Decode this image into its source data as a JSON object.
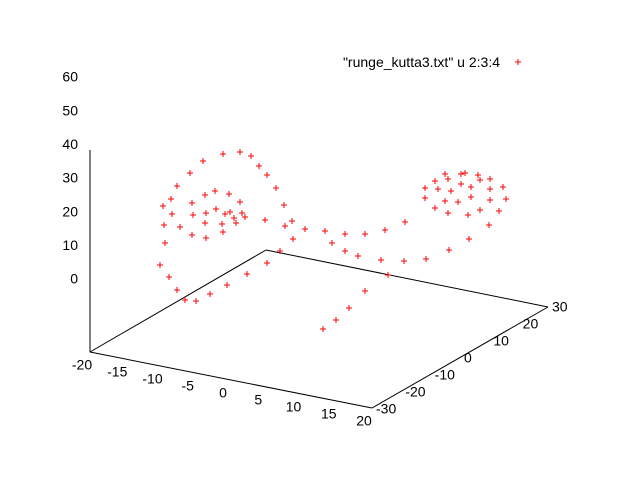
{
  "chart_data": {
    "type": "scatter",
    "subtype": "3d-splot",
    "title": "",
    "xlabel": "",
    "ylabel": "",
    "zlabel": "",
    "legend": {
      "text": "\"runge_kutta3.txt\" u 2:3:4",
      "position": "top-right",
      "marker": "+"
    },
    "color": "#ff0000",
    "axes": {
      "x": {
        "range": [
          -20,
          20
        ],
        "ticks": [
          -20,
          -15,
          -10,
          -5,
          0,
          5,
          10,
          15,
          20
        ]
      },
      "y": {
        "range": [
          -30,
          30
        ],
        "ticks": [
          -30,
          -20,
          -10,
          0,
          10,
          20,
          30
        ]
      },
      "z": {
        "range": [
          0,
          60
        ],
        "ticks": [
          0,
          10,
          20,
          30,
          40,
          50,
          60
        ]
      }
    },
    "series": [
      {
        "name": "\"runge_kutta3.txt\" u 2:3:4",
        "marker": "+",
        "points": [
          [
            -18,
            -10,
            34
          ],
          [
            -17,
            -12,
            30
          ],
          [
            -16,
            -14,
            26
          ],
          [
            -15,
            -18,
            22
          ],
          [
            -13,
            -20,
            20
          ],
          [
            -11,
            -22,
            18
          ],
          [
            -9,
            -24,
            17
          ],
          [
            -7,
            -25,
            18
          ],
          [
            -5,
            -25,
            21
          ],
          [
            -3,
            -24,
            24
          ],
          [
            -1,
            -22,
            27
          ],
          [
            1,
            -20,
            30
          ],
          [
            2,
            -18,
            33
          ],
          [
            3,
            -16,
            36
          ],
          [
            2,
            -14,
            40
          ],
          [
            0,
            -12,
            43
          ],
          [
            -2,
            -10,
            46
          ],
          [
            -4,
            -8,
            48
          ],
          [
            -6,
            -6,
            49
          ],
          [
            -8,
            -4,
            50
          ],
          [
            -10,
            -3,
            50
          ],
          [
            -12,
            -4,
            49
          ],
          [
            -14,
            -6,
            47
          ],
          [
            -15,
            -8,
            44
          ],
          [
            -16,
            -10,
            41
          ],
          [
            -16,
            -12,
            38
          ],
          [
            -15,
            -14,
            35
          ],
          [
            -13,
            -16,
            33
          ],
          [
            -11,
            -17,
            32
          ],
          [
            -9,
            -17,
            32
          ],
          [
            -7,
            -16,
            34
          ],
          [
            -6,
            -14,
            36
          ],
          [
            -6,
            -12,
            38
          ],
          [
            -7,
            -10,
            40
          ],
          [
            -9,
            -9,
            41
          ],
          [
            -11,
            -9,
            41
          ],
          [
            -12,
            -10,
            40
          ],
          [
            -13,
            -12,
            38
          ],
          [
            -12,
            -14,
            36
          ],
          [
            -10,
            -15,
            35
          ],
          [
            -8,
            -14,
            35
          ],
          [
            -7,
            -12,
            36
          ],
          [
            -8,
            -11,
            37
          ],
          [
            -10,
            -11,
            37
          ],
          [
            -11,
            -12,
            36
          ],
          [
            1,
            2,
            25
          ],
          [
            2,
            4,
            22
          ],
          [
            3,
            6,
            20
          ],
          [
            5,
            9,
            18
          ],
          [
            7,
            12,
            17
          ],
          [
            9,
            15,
            17
          ],
          [
            11,
            18,
            19
          ],
          [
            13,
            20,
            22
          ],
          [
            15,
            22,
            26
          ],
          [
            16,
            23,
            30
          ],
          [
            17,
            23,
            34
          ],
          [
            17,
            22,
            38
          ],
          [
            16,
            20,
            41
          ],
          [
            15,
            18,
            43
          ],
          [
            14,
            16,
            44
          ],
          [
            12,
            14,
            44
          ],
          [
            11,
            13,
            42
          ],
          [
            10,
            12,
            40
          ],
          [
            10,
            12,
            37
          ],
          [
            11,
            13,
            34
          ],
          [
            12,
            15,
            32
          ],
          [
            14,
            17,
            31
          ],
          [
            15,
            19,
            32
          ],
          [
            16,
            20,
            35
          ],
          [
            16,
            20,
            38
          ],
          [
            15,
            19,
            41
          ],
          [
            13,
            17,
            43
          ],
          [
            12,
            15,
            42
          ],
          [
            11,
            14,
            39
          ],
          [
            12,
            14,
            36
          ],
          [
            13,
            16,
            35
          ],
          [
            14,
            18,
            36
          ],
          [
            14,
            18,
            39
          ],
          [
            13,
            17,
            40
          ],
          [
            12,
            16,
            38
          ],
          [
            8,
            10,
            30
          ],
          [
            6,
            8,
            28
          ],
          [
            4,
            6,
            27
          ],
          [
            2,
            4,
            27
          ],
          [
            0,
            2,
            28
          ],
          [
            -2,
            0,
            29
          ],
          [
            -4,
            -2,
            30
          ],
          [
            -6,
            -4,
            32
          ],
          [
            -8,
            -6,
            33
          ],
          [
            -10,
            -8,
            34
          ],
          [
            1,
            -1,
            1
          ],
          [
            2,
            1,
            3
          ],
          [
            3,
            3,
            6
          ],
          [
            4,
            6,
            10
          ],
          [
            6,
            9,
            14
          ]
        ]
      }
    ]
  }
}
